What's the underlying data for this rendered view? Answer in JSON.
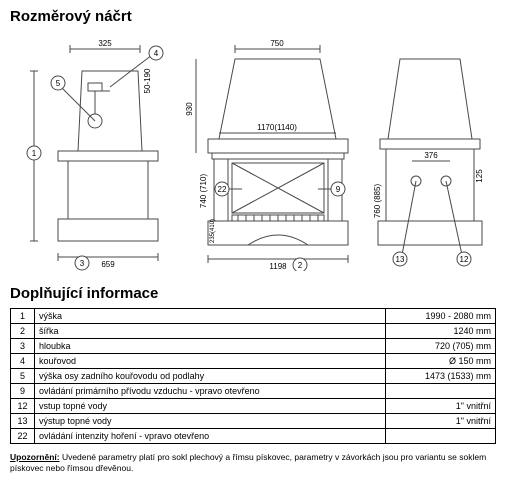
{
  "titles": {
    "dimensional_sketch": "Rozměrový náčrt",
    "additional_info": "Doplňující informace"
  },
  "diagram": {
    "stroke": "#4a4a4a",
    "stroke_width": 1,
    "callout_fill": "#ffffff",
    "dim_font_size": 8,
    "labels": {
      "top_left": "325",
      "top_mid": "750",
      "side_h": "50-190",
      "bottom_left": "659",
      "center_span": "1170(1140)",
      "bottom_center": "1198",
      "left_height": "930",
      "inner_h1": "740 (710)",
      "inner_h2": "235(410)",
      "right_h": "760 (885)",
      "right_top": "376",
      "right_side": "125"
    },
    "callouts": {
      "c1": "1",
      "c2": "2",
      "c3": "3",
      "c4": "4",
      "c5": "5",
      "c9": "9",
      "c12": "12",
      "c13": "13",
      "c22": "22"
    }
  },
  "table": {
    "rows": [
      {
        "num": "1",
        "label": "výška",
        "value": "1990 - 2080 mm"
      },
      {
        "num": "2",
        "label": "šířka",
        "value": "1240 mm"
      },
      {
        "num": "3",
        "label": "hloubka",
        "value": "720 (705) mm"
      },
      {
        "num": "4",
        "label": "kouřovod",
        "value": "Ø 150 mm"
      },
      {
        "num": "5",
        "label": "výška osy zadního kouřovodu od podlahy",
        "value": "1473 (1533) mm"
      },
      {
        "num": "9",
        "label": "ovládání primárního přívodu vzduchu - vpravo otevřeno",
        "value": ""
      },
      {
        "num": "12",
        "label": "vstup topné vody",
        "value": "1\" vnitřní"
      },
      {
        "num": "13",
        "label": "výstup topné vody",
        "value": "1\" vnitřní"
      },
      {
        "num": "22",
        "label": "ovládání intenzity hoření - vpravo otevřeno",
        "value": ""
      }
    ]
  },
  "note": {
    "label": "Upozornění:",
    "text": " Uvedené parametry platí pro sokl plechový a římsu pískovec, parametry v závorkách jsou pro variantu se soklem pískovec nebo římsou dřevěnou."
  }
}
